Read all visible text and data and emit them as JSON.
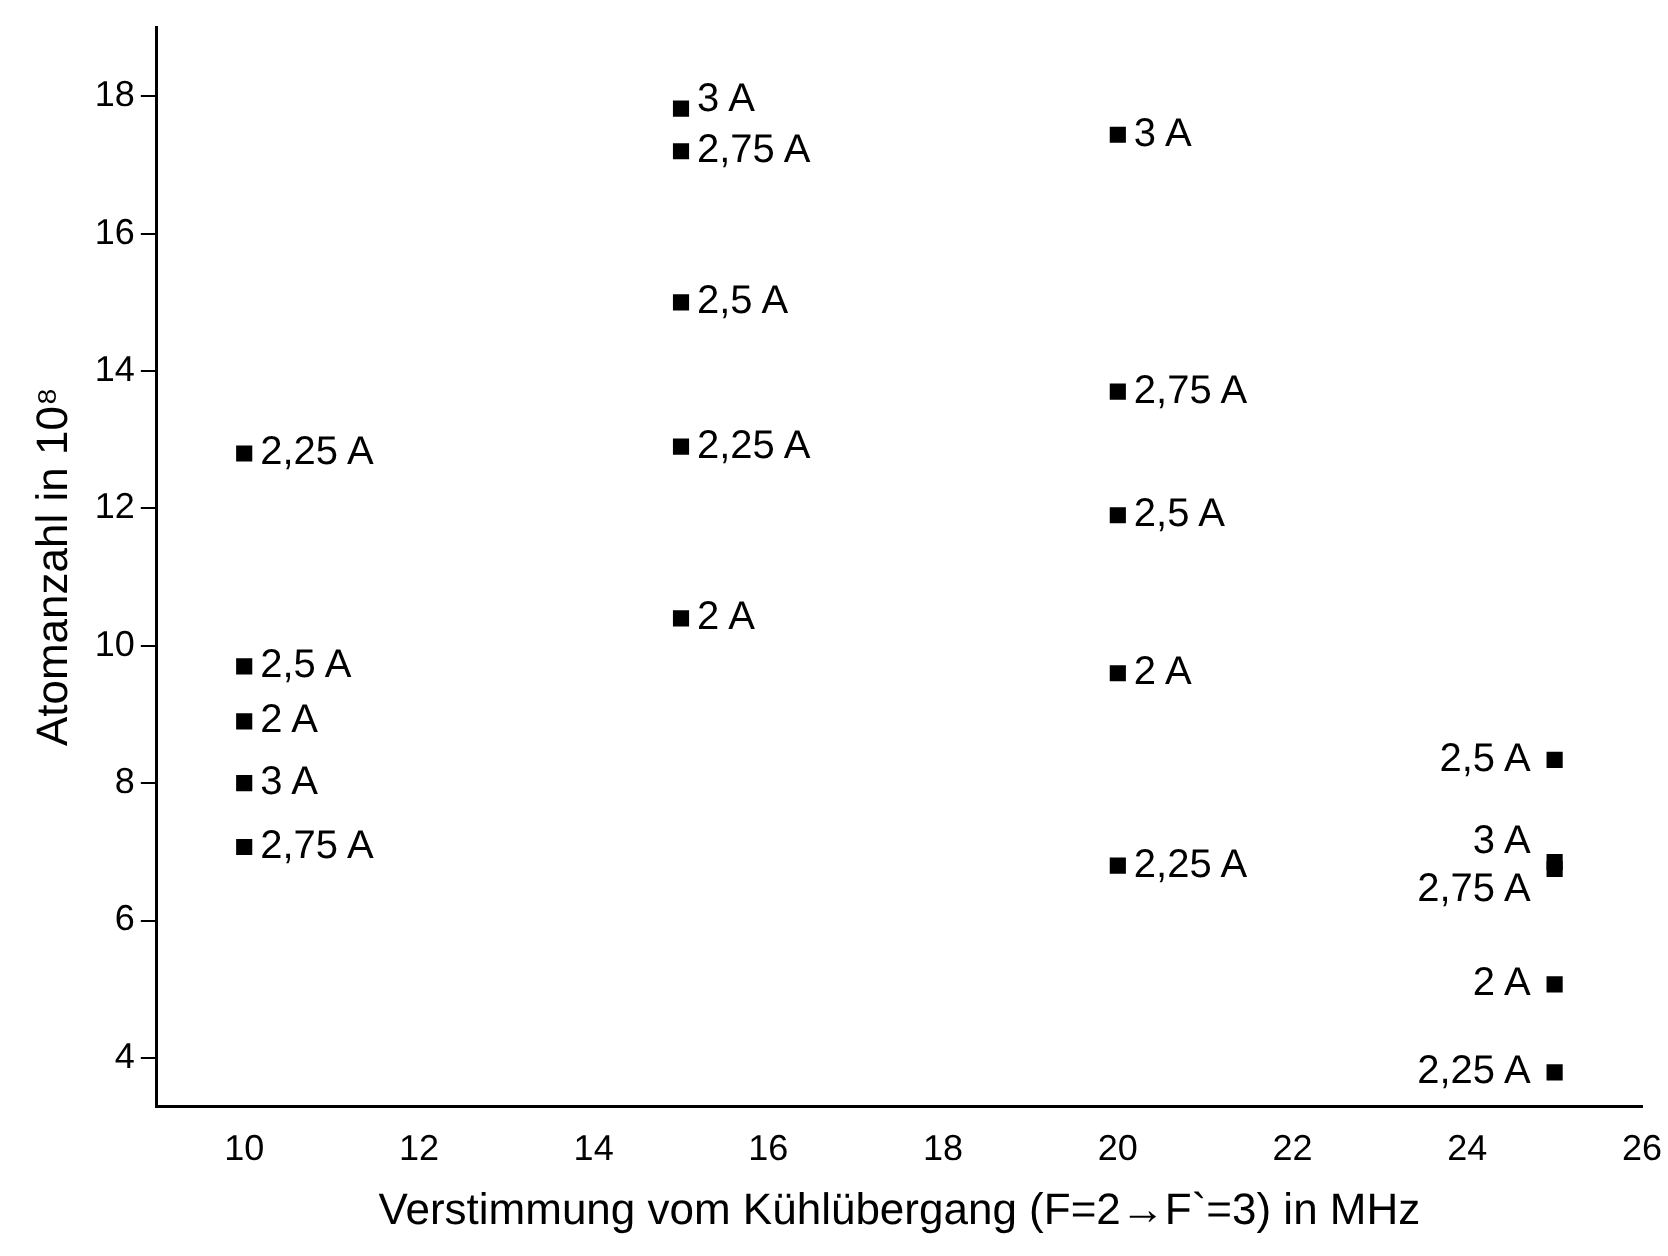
{
  "chart_data": {
    "type": "scatter",
    "xlabel": "Verstimmung vom Kühlübergang (F=2→F`=3) in MHz",
    "ylabel": "Atomanzahl in 10⁸",
    "marker": "square",
    "grid": false,
    "legend": false,
    "xlim": [
      9,
      26
    ],
    "xticks": [
      10,
      12,
      14,
      16,
      18,
      20,
      22,
      24,
      26
    ],
    "ylim": [
      3.3,
      19
    ],
    "yticks": [
      4,
      6,
      8,
      10,
      12,
      14,
      16,
      18
    ],
    "series": [
      {
        "color": "#000000",
        "x": [
          10,
          10,
          10,
          10,
          10,
          15,
          15,
          15,
          15,
          15,
          20,
          20,
          20,
          20,
          20,
          25,
          25,
          25,
          25,
          25
        ],
        "values": [
          12.8,
          9.7,
          8.9,
          8.0,
          7.07,
          17.82,
          17.2,
          15.0,
          12.9,
          10.4,
          17.44,
          13.7,
          11.9,
          9.6,
          6.8,
          8.34,
          6.85,
          6.75,
          5.07,
          3.79
        ]
      }
    ],
    "annotations": [
      {
        "text": "2,25 A",
        "x": 10,
        "y": 12.8
      },
      {
        "text": "2,5 A",
        "x": 10,
        "y": 9.7
      },
      {
        "text": "2 A",
        "x": 10,
        "y": 8.9
      },
      {
        "text": "3 A",
        "x": 10,
        "y": 8.0
      },
      {
        "text": "2,75 A",
        "x": 10,
        "y": 7.07
      },
      {
        "text": "3 A",
        "x": 15,
        "y": 17.95
      },
      {
        "text": "2,75 A",
        "x": 15,
        "y": 17.2
      },
      {
        "text": "2,5 A",
        "x": 15,
        "y": 15.0
      },
      {
        "text": "2,25 A",
        "x": 15,
        "y": 12.9
      },
      {
        "text": "2 A",
        "x": 15,
        "y": 10.4
      },
      {
        "text": "3 A",
        "x": 20,
        "y": 17.44
      },
      {
        "text": "2,75 A",
        "x": 20,
        "y": 13.7
      },
      {
        "text": "2,5 A",
        "x": 20,
        "y": 11.9
      },
      {
        "text": "2 A",
        "x": 20,
        "y": 9.6
      },
      {
        "text": "2,25 A",
        "x": 20,
        "y": 6.8
      },
      {
        "text": "2,5 A",
        "x": 25,
        "y": 8.34
      },
      {
        "text": "3 A",
        "x": 25,
        "y": 6.85
      },
      {
        "text": "2,75 A",
        "x": 25,
        "y": 6.75
      },
      {
        "text": "2 A",
        "x": 25,
        "y": 5.07
      },
      {
        "text": "2,25 A",
        "x": 25,
        "y": 3.79
      }
    ]
  }
}
